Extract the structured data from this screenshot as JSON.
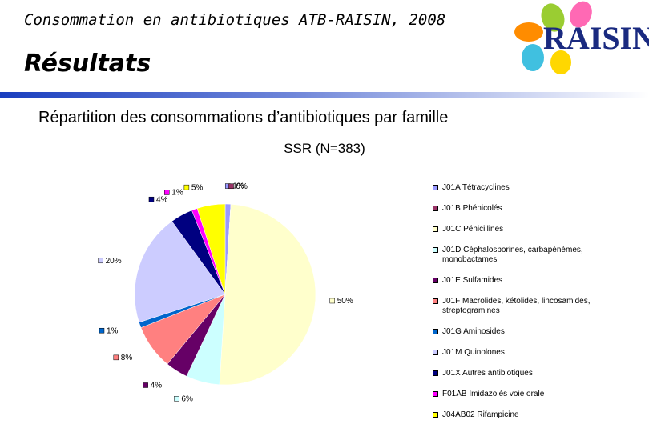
{
  "header": {
    "title": "Consommation en antibiotiques ATB-RAISIN, 2008",
    "section": "Résultats",
    "subtitle": "Répartition des consommations d’antibiotiques par famille",
    "logo": "RAISIN"
  },
  "chart_data": {
    "type": "pie",
    "title": "SSR (N=383)",
    "categories": [
      "J01A Tétracyclines",
      "J01B Phénicolés",
      "J01C Pénicillines",
      "J01D Céphalosporines, carbapénèmes, monobactames",
      "J01E Sulfamides",
      "J01F Macrolides, kétolides, lincosamides, streptogramines",
      "J01G Aminosides",
      "J01M Quinolones",
      "J01X Autres antibiotiques",
      "F01AB Imidazolés voie orale",
      "J04AB02 Rifampicine"
    ],
    "values": [
      1,
      0,
      50,
      6,
      4,
      8,
      1,
      20,
      4,
      1,
      5
    ],
    "value_labels": [
      "1%",
      "0%",
      "50%",
      "6%",
      "4%",
      "8%",
      "1%",
      "20%",
      "4%",
      "1%",
      "5%"
    ],
    "colors": [
      "#9999ff",
      "#993366",
      "#ffffcc",
      "#ccffff",
      "#660066",
      "#ff8080",
      "#0066cc",
      "#ccccff",
      "#000080",
      "#ff00ff",
      "#ffff00"
    ],
    "legend": "right"
  }
}
